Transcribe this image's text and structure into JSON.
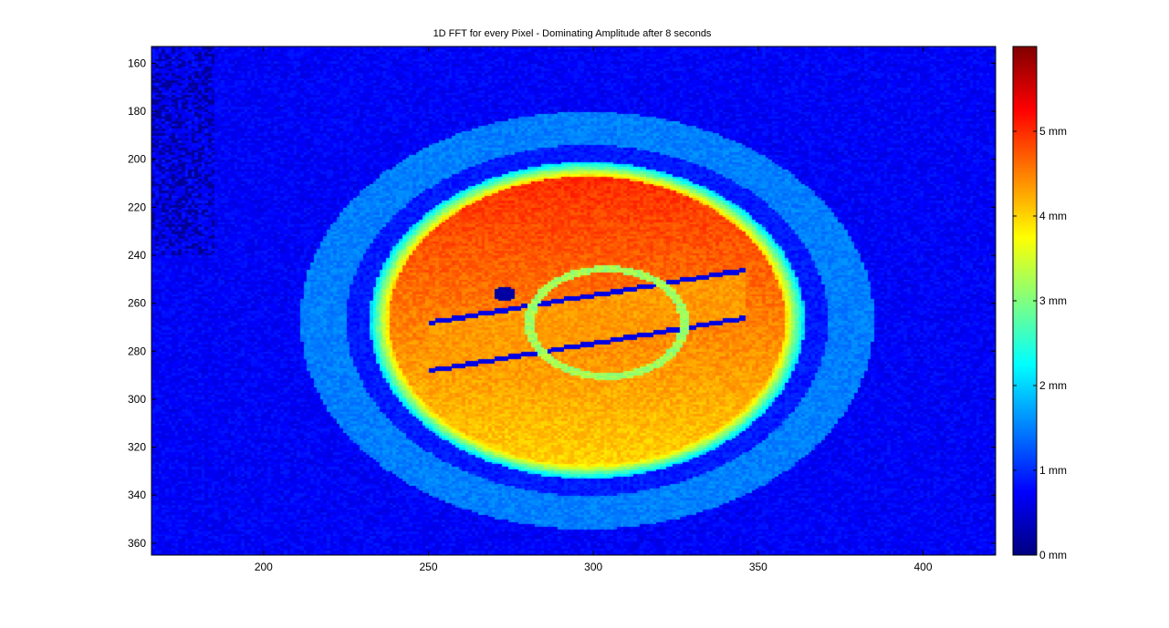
{
  "chart_data": {
    "type": "heatmap",
    "title": "1D FFT for every Pixel - Dominating Amplitude after 8 seconds",
    "xlabel": "",
    "ylabel": "",
    "xlim": [
      166,
      422
    ],
    "ylim": [
      153,
      365
    ],
    "y_reversed": true,
    "x_ticks": [
      200,
      250,
      300,
      350,
      400
    ],
    "y_ticks": [
      160,
      180,
      200,
      220,
      240,
      260,
      280,
      300,
      320,
      340,
      360
    ],
    "grid": false,
    "colormap": "jet",
    "colorbar": {
      "range": [
        0,
        6
      ],
      "ticks": [
        0,
        1,
        2,
        3,
        4,
        5
      ],
      "tick_labels": [
        "0 mm",
        "1 mm",
        "2 mm",
        "3 mm",
        "4 mm",
        "5 mm"
      ]
    },
    "field": {
      "center": [
        298,
        267
      ],
      "background_level": 0.55,
      "features": [
        {
          "kind": "ring",
          "semi_axes": [
            85,
            87
          ],
          "level": 1.3
        },
        {
          "kind": "ring",
          "semi_axes": [
            73,
            72
          ],
          "level": 0.75
        },
        {
          "kind": "ring",
          "semi_axes": [
            64,
            64
          ],
          "level": 2.6
        },
        {
          "kind": "disk",
          "semi_axes": [
            60,
            60
          ],
          "level_top": 5.0,
          "level_bottom": 4.1
        },
        {
          "kind": "disk",
          "center": [
            304,
            268
          ],
          "semi_axes": [
            26,
            24
          ],
          "level": 4.0
        },
        {
          "kind": "hole",
          "center": [
            273,
            256
          ],
          "radius": 3,
          "level": 0.2
        }
      ]
    }
  }
}
